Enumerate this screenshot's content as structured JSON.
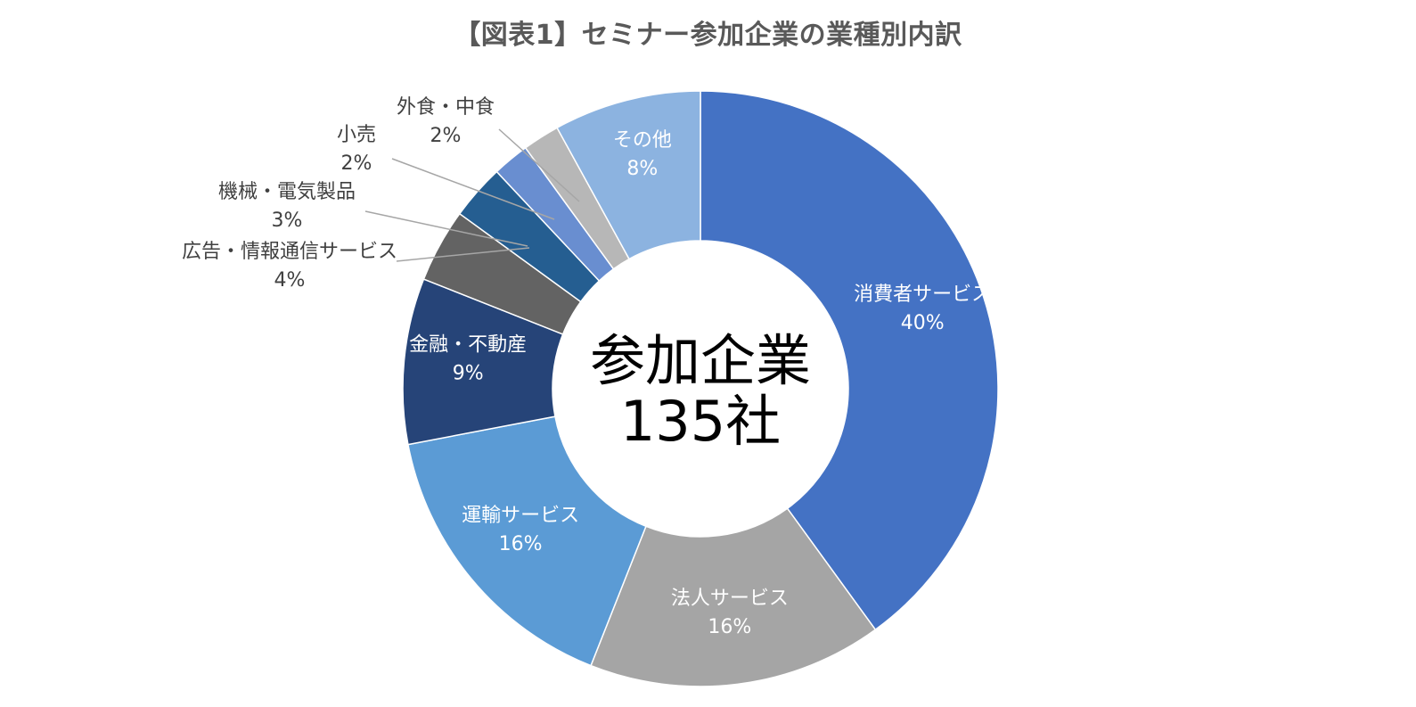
{
  "chart_data": {
    "type": "pie",
    "title": "【図表1】セミナー参加企業の業種別内訳",
    "center_label": [
      "参加企業",
      "135社"
    ],
    "legend": "none",
    "slices": [
      {
        "label": "消費者サービス",
        "value": 40,
        "value_label": "40%",
        "color": "#4472c4",
        "label_color": "#ffffff"
      },
      {
        "label": "法人サービス",
        "value": 16,
        "value_label": "16%",
        "color": "#a5a5a5",
        "label_color": "#ffffff"
      },
      {
        "label": "運輸サービス",
        "value": 16,
        "value_label": "16%",
        "color": "#5b9bd5",
        "label_color": "#ffffff"
      },
      {
        "label": "金融・不動産",
        "value": 9,
        "value_label": "9%",
        "color": "#264478",
        "label_color": "#ffffff"
      },
      {
        "label": "広告・情報通信サービス",
        "value": 4,
        "value_label": "4%",
        "color": "#636363",
        "label_color": "#404040"
      },
      {
        "label": "機械・電気製品",
        "value": 3,
        "value_label": "3%",
        "color": "#255e91",
        "label_color": "#404040"
      },
      {
        "label": "小売",
        "value": 2,
        "value_label": "2%",
        "color": "#698ed0",
        "label_color": "#404040"
      },
      {
        "label": "外食・中食",
        "value": 2,
        "value_label": "2%",
        "color": "#b7b7b7",
        "label_color": "#404040"
      },
      {
        "label": "その他",
        "value": 8,
        "value_label": "8%",
        "color": "#8cb3e0",
        "label_color": "#ffffff"
      }
    ]
  }
}
